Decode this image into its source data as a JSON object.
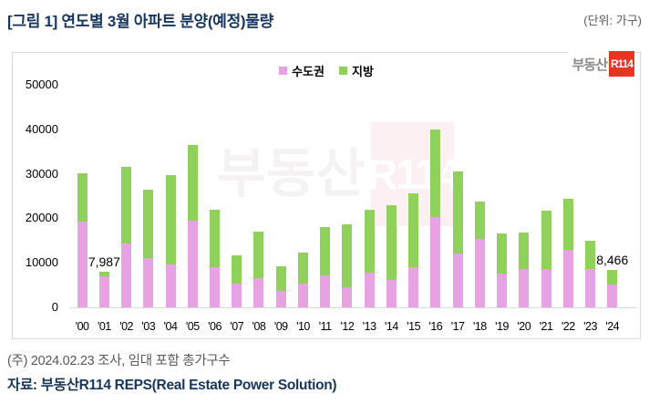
{
  "header": {
    "title": "[그림 1] 연도별 3월 아파트 분양(예정)물량",
    "unit": "(단위: 가구)"
  },
  "legend": [
    {
      "label": "수도권",
      "color": "#E7A2E3"
    },
    {
      "label": "지방",
      "color": "#90D15C"
    }
  ],
  "brand": {
    "prefix": "부동산",
    "mark": "R114",
    "mark_bg": "#EA3323"
  },
  "watermark": {
    "prefix": "부동산",
    "mark": "R114"
  },
  "chart_data": {
    "type": "bar",
    "stacked": true,
    "title": "연도별 3월 아파트 분양(예정)물량",
    "unit_label": "가구",
    "categories": [
      "'00",
      "'01",
      "'02",
      "'03",
      "'04",
      "'05",
      "'06",
      "'07",
      "'08",
      "'09",
      "'10",
      "'11",
      "'12",
      "'13",
      "'14",
      "'15",
      "'16",
      "'17",
      "'18",
      "'19",
      "'20",
      "'21",
      "'22",
      "'23",
      "'24"
    ],
    "series": [
      {
        "name": "수도권",
        "color": "#E7A2E3",
        "values": [
          19200,
          6900,
          14400,
          11100,
          9700,
          19500,
          9100,
          5400,
          6500,
          3700,
          5300,
          7200,
          4500,
          7700,
          6100,
          9100,
          20300,
          12100,
          15300,
          7500,
          8700,
          8700,
          13000,
          8600,
          5200
        ]
      },
      {
        "name": "지방",
        "color": "#90D15C",
        "values": [
          11000,
          1087,
          17200,
          15300,
          20100,
          16900,
          12800,
          6200,
          10500,
          5600,
          6900,
          10800,
          14100,
          14200,
          16800,
          16600,
          19600,
          18400,
          8400,
          9100,
          8200,
          13100,
          11400,
          6300,
          3266
        ]
      }
    ],
    "totals": [
      30200,
      7987,
      31600,
      26400,
      29800,
      36400,
      21900,
      11600,
      17000,
      9300,
      12200,
      18000,
      18600,
      21900,
      22900,
      25700,
      39900,
      30500,
      23700,
      16600,
      16900,
      21800,
      24400,
      14900,
      8466
    ],
    "annotations": [
      {
        "index": 1,
        "text": "7,987"
      },
      {
        "index": 24,
        "text": "8,466"
      }
    ],
    "ylim": [
      0,
      50000
    ],
    "yticks": [
      0,
      10000,
      20000,
      30000,
      40000,
      50000
    ],
    "grid": false,
    "legend_position": "top-center"
  },
  "footer": {
    "note": "(주) 2024.02.23 조사, 임대 포함 총가구수",
    "source": "자료: 부동산R114 REPS(Real Estate Power Solution)"
  }
}
